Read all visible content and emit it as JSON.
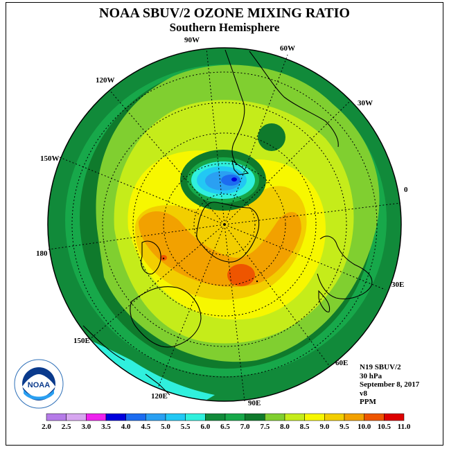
{
  "title": "NOAA SBUV/2 OZONE MIXING RATIO",
  "subtitle": "Southern Hemisphere",
  "longitude_labels": [
    "90W",
    "60W",
    "30W",
    "0",
    "30E",
    "60E",
    "90E",
    "120E",
    "150E",
    "180",
    "150W",
    "120W"
  ],
  "info": {
    "satellite": "N19 SBUV/2",
    "level": "30 hPa",
    "date": "September 8, 2017",
    "version": "v8",
    "units": "PPM"
  },
  "logo_text": "NOAA",
  "legend": {
    "labels": [
      "2.0",
      "2.5",
      "3.0",
      "3.5",
      "4.0",
      "4.5",
      "5.0",
      "5.5",
      "6.0",
      "6.5",
      "7.0",
      "7.5",
      "8.0",
      "8.5",
      "9.0",
      "9.5",
      "10.0",
      "10.5",
      "11.0"
    ],
    "colors": [
      "#b57be8",
      "#d7a6f0",
      "#ee22ee",
      "#0000dd",
      "#1c6cf0",
      "#2aa0f2",
      "#22c8f4",
      "#30f0dd",
      "#118a3a",
      "#17a84a",
      "#0f7a2c",
      "#80cf30",
      "#c5ec1a",
      "#f7f700",
      "#f2ce00",
      "#f2a100",
      "#ee5500",
      "#dd0000",
      "#8b5a2b"
    ]
  },
  "colors": {
    "ocean_land_edge": "#0f7a2c",
    "coast": "#000000"
  }
}
